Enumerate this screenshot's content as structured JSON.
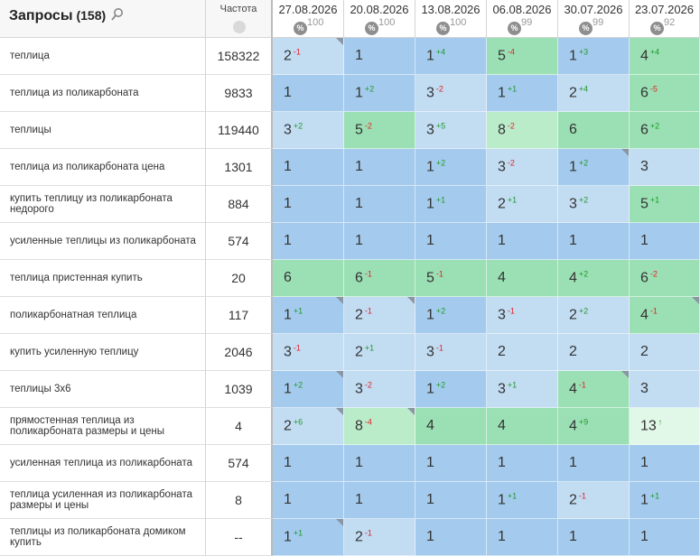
{
  "header": {
    "queries_label": "Запросы",
    "queries_count": "(158)",
    "frequency_label": "Частота",
    "dates": [
      {
        "date": "27.08.2026",
        "visibility": "100"
      },
      {
        "date": "20.08.2026",
        "visibility": "100"
      },
      {
        "date": "13.08.2026",
        "visibility": "100"
      },
      {
        "date": "06.08.2026",
        "visibility": "99"
      },
      {
        "date": "30.07.2026",
        "visibility": "99"
      },
      {
        "date": "23.07.2026",
        "visibility": "92"
      }
    ],
    "percent_icon_text": "%"
  },
  "colors": {
    "blue_dark": "#a4cbed",
    "blue_light": "#c2dcf2",
    "green": "#9be0b4",
    "green_light": "#bbecca",
    "green_pale": "#e1f7e7",
    "up": "#1f9a2c",
    "down": "#e0242b"
  },
  "rows": [
    {
      "query": "теплица",
      "freq": "158322",
      "cells": [
        {
          "pos": "2",
          "delta": "-1",
          "c": "blue_light",
          "flag": true
        },
        {
          "pos": "1",
          "delta": "",
          "c": "blue_dark"
        },
        {
          "pos": "1",
          "delta": "+4",
          "c": "blue_dark"
        },
        {
          "pos": "5",
          "delta": "-4",
          "c": "green"
        },
        {
          "pos": "1",
          "delta": "+3",
          "c": "blue_dark"
        },
        {
          "pos": "4",
          "delta": "+4",
          "c": "green"
        }
      ]
    },
    {
      "query": "теплица из поликарбоната",
      "freq": "9833",
      "cells": [
        {
          "pos": "1",
          "delta": "",
          "c": "blue_dark"
        },
        {
          "pos": "1",
          "delta": "+2",
          "c": "blue_dark"
        },
        {
          "pos": "3",
          "delta": "-2",
          "c": "blue_light"
        },
        {
          "pos": "1",
          "delta": "+1",
          "c": "blue_dark"
        },
        {
          "pos": "2",
          "delta": "+4",
          "c": "blue_light"
        },
        {
          "pos": "6",
          "delta": "-5",
          "c": "green"
        }
      ]
    },
    {
      "query": "теплицы",
      "freq": "119440",
      "cells": [
        {
          "pos": "3",
          "delta": "+2",
          "c": "blue_light"
        },
        {
          "pos": "5",
          "delta": "-2",
          "c": "green"
        },
        {
          "pos": "3",
          "delta": "+5",
          "c": "blue_light"
        },
        {
          "pos": "8",
          "delta": "-2",
          "c": "green_light"
        },
        {
          "pos": "6",
          "delta": "",
          "c": "green"
        },
        {
          "pos": "6",
          "delta": "+2",
          "c": "green"
        }
      ]
    },
    {
      "query": "теплица из поликарбоната цена",
      "freq": "1301",
      "cells": [
        {
          "pos": "1",
          "delta": "",
          "c": "blue_dark"
        },
        {
          "pos": "1",
          "delta": "",
          "c": "blue_dark"
        },
        {
          "pos": "1",
          "delta": "+2",
          "c": "blue_dark"
        },
        {
          "pos": "3",
          "delta": "-2",
          "c": "blue_light"
        },
        {
          "pos": "1",
          "delta": "+2",
          "c": "blue_dark",
          "flag": true
        },
        {
          "pos": "3",
          "delta": "",
          "c": "blue_light"
        }
      ]
    },
    {
      "query": "купить теплицу из поликарбоната недорого",
      "freq": "884",
      "cells": [
        {
          "pos": "1",
          "delta": "",
          "c": "blue_dark"
        },
        {
          "pos": "1",
          "delta": "",
          "c": "blue_dark"
        },
        {
          "pos": "1",
          "delta": "+1",
          "c": "blue_dark"
        },
        {
          "pos": "2",
          "delta": "+1",
          "c": "blue_light"
        },
        {
          "pos": "3",
          "delta": "+2",
          "c": "blue_light"
        },
        {
          "pos": "5",
          "delta": "+1",
          "c": "green"
        }
      ]
    },
    {
      "query": "усиленные теплицы из поликарбоната",
      "freq": "574",
      "cells": [
        {
          "pos": "1",
          "delta": "",
          "c": "blue_dark"
        },
        {
          "pos": "1",
          "delta": "",
          "c": "blue_dark"
        },
        {
          "pos": "1",
          "delta": "",
          "c": "blue_dark"
        },
        {
          "pos": "1",
          "delta": "",
          "c": "blue_dark"
        },
        {
          "pos": "1",
          "delta": "",
          "c": "blue_dark"
        },
        {
          "pos": "1",
          "delta": "",
          "c": "blue_dark"
        }
      ]
    },
    {
      "query": "теплица пристенная купить",
      "freq": "20",
      "cells": [
        {
          "pos": "6",
          "delta": "",
          "c": "green"
        },
        {
          "pos": "6",
          "delta": "-1",
          "c": "green"
        },
        {
          "pos": "5",
          "delta": "-1",
          "c": "green"
        },
        {
          "pos": "4",
          "delta": "",
          "c": "green"
        },
        {
          "pos": "4",
          "delta": "+2",
          "c": "green"
        },
        {
          "pos": "6",
          "delta": "-2",
          "c": "green"
        }
      ]
    },
    {
      "query": "поликарбонатная теплица",
      "freq": "117",
      "cells": [
        {
          "pos": "1",
          "delta": "+1",
          "c": "blue_dark",
          "flag": true
        },
        {
          "pos": "2",
          "delta": "-1",
          "c": "blue_light",
          "flag": true
        },
        {
          "pos": "1",
          "delta": "+2",
          "c": "blue_dark"
        },
        {
          "pos": "3",
          "delta": "-1",
          "c": "blue_light"
        },
        {
          "pos": "2",
          "delta": "+2",
          "c": "blue_light"
        },
        {
          "pos": "4",
          "delta": "-1",
          "c": "green",
          "flag": true
        }
      ]
    },
    {
      "query": "купить усиленную теплицу",
      "freq": "2046",
      "cells": [
        {
          "pos": "3",
          "delta": "-1",
          "c": "blue_light"
        },
        {
          "pos": "2",
          "delta": "+1",
          "c": "blue_light"
        },
        {
          "pos": "3",
          "delta": "-1",
          "c": "blue_light"
        },
        {
          "pos": "2",
          "delta": "",
          "c": "blue_light"
        },
        {
          "pos": "2",
          "delta": "",
          "c": "blue_light"
        },
        {
          "pos": "2",
          "delta": "",
          "c": "blue_light"
        }
      ]
    },
    {
      "query": "теплицы 3х6",
      "freq": "1039",
      "cells": [
        {
          "pos": "1",
          "delta": "+2",
          "c": "blue_dark",
          "flag": true
        },
        {
          "pos": "3",
          "delta": "-2",
          "c": "blue_light"
        },
        {
          "pos": "1",
          "delta": "+2",
          "c": "blue_dark"
        },
        {
          "pos": "3",
          "delta": "+1",
          "c": "blue_light"
        },
        {
          "pos": "4",
          "delta": "-1",
          "c": "green",
          "flag": true
        },
        {
          "pos": "3",
          "delta": "",
          "c": "blue_light"
        }
      ]
    },
    {
      "query": "прямостенная теплица из поликарбоната размеры и цены",
      "freq": "4",
      "cells": [
        {
          "pos": "2",
          "delta": "+6",
          "c": "blue_light",
          "flag": true
        },
        {
          "pos": "8",
          "delta": "-4",
          "c": "green_light",
          "flag": true
        },
        {
          "pos": "4",
          "delta": "",
          "c": "green"
        },
        {
          "pos": "4",
          "delta": "",
          "c": "green"
        },
        {
          "pos": "4",
          "delta": "+9",
          "c": "green"
        },
        {
          "pos": "13",
          "delta": "↑",
          "c": "green_pale"
        }
      ]
    },
    {
      "query": "усиленная теплица из поликарбоната",
      "freq": "574",
      "cells": [
        {
          "pos": "1",
          "delta": "",
          "c": "blue_dark"
        },
        {
          "pos": "1",
          "delta": "",
          "c": "blue_dark"
        },
        {
          "pos": "1",
          "delta": "",
          "c": "blue_dark"
        },
        {
          "pos": "1",
          "delta": "",
          "c": "blue_dark"
        },
        {
          "pos": "1",
          "delta": "",
          "c": "blue_dark"
        },
        {
          "pos": "1",
          "delta": "",
          "c": "blue_dark"
        }
      ]
    },
    {
      "query": "теплица усиленная из поликарбоната размеры и цены",
      "freq": "8",
      "cells": [
        {
          "pos": "1",
          "delta": "",
          "c": "blue_dark"
        },
        {
          "pos": "1",
          "delta": "",
          "c": "blue_dark"
        },
        {
          "pos": "1",
          "delta": "",
          "c": "blue_dark"
        },
        {
          "pos": "1",
          "delta": "+1",
          "c": "blue_dark"
        },
        {
          "pos": "2",
          "delta": "-1",
          "c": "blue_light"
        },
        {
          "pos": "1",
          "delta": "+1",
          "c": "blue_dark"
        }
      ]
    },
    {
      "query": "теплицы из поликарбоната домиком купить",
      "freq": "--",
      "cells": [
        {
          "pos": "1",
          "delta": "+1",
          "c": "blue_dark",
          "flag": true
        },
        {
          "pos": "2",
          "delta": "-1",
          "c": "blue_light"
        },
        {
          "pos": "1",
          "delta": "",
          "c": "blue_dark"
        },
        {
          "pos": "1",
          "delta": "",
          "c": "blue_dark"
        },
        {
          "pos": "1",
          "delta": "",
          "c": "blue_dark"
        },
        {
          "pos": "1",
          "delta": "",
          "c": "blue_dark"
        }
      ]
    }
  ]
}
